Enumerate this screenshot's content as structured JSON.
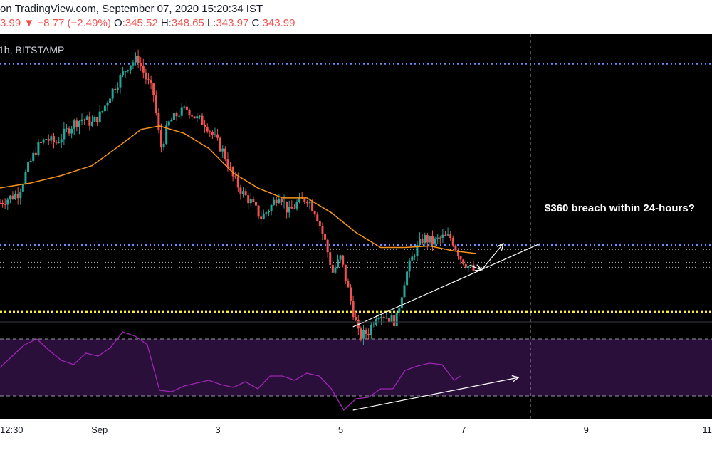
{
  "header": {
    "source_line": "on TradingView.com, September 07, 2020 15:20:34 IST",
    "last_fragment": "3.99",
    "change_arrow": "▼",
    "change": "−8.77 (−2.49%)",
    "o_label": "O:",
    "o_value": "345.52",
    "h_label": "H:",
    "h_value": "348.65",
    "l_label": "L:",
    "l_value": "343.97",
    "c_label": "C:",
    "c_value": "343.99",
    "symbol_fragment": "1h, BITSTAMP"
  },
  "colors": {
    "up": "#26a69a",
    "down": "#ef5350",
    "ma": "#f7931a",
    "resistance": "#6b8dff",
    "support": "#ffeb3b",
    "rsi": "#9c27b0",
    "rsi_band": "#2a0f3a",
    "annotation": "#ffffff",
    "background": "#000000"
  },
  "chart_data": {
    "type": "candlestick",
    "annotation": "$360 breach within 24-hours?",
    "x_ticks": [
      "12:30",
      "Sep",
      "3",
      "5",
      "7",
      "9",
      "11"
    ],
    "price_series": {
      "close_path": [
        [
          0.0,
          364
        ],
        [
          0.15,
          365
        ],
        [
          0.3,
          366
        ],
        [
          0.45,
          371
        ],
        [
          0.6,
          375
        ],
        [
          0.75,
          377
        ],
        [
          0.9,
          376
        ],
        [
          1.05,
          378
        ],
        [
          1.2,
          380
        ],
        [
          1.35,
          381
        ],
        [
          1.5,
          380
        ],
        [
          1.65,
          382
        ],
        [
          1.8,
          386
        ],
        [
          1.95,
          389
        ],
        [
          2.1,
          392
        ],
        [
          2.25,
          393
        ],
        [
          2.38,
          389
        ],
        [
          2.5,
          386
        ],
        [
          2.62,
          375
        ],
        [
          2.75,
          380
        ],
        [
          2.9,
          382
        ],
        [
          3.05,
          383
        ],
        [
          3.2,
          381
        ],
        [
          3.35,
          380
        ],
        [
          3.5,
          377
        ],
        [
          3.65,
          374
        ],
        [
          3.8,
          369
        ],
        [
          3.95,
          366
        ],
        [
          4.1,
          364
        ],
        [
          4.25,
          361
        ],
        [
          4.4,
          363
        ],
        [
          4.55,
          366
        ],
        [
          4.7,
          362
        ],
        [
          4.85,
          364
        ],
        [
          5.0,
          365
        ],
        [
          5.15,
          362
        ],
        [
          5.3,
          356
        ],
        [
          5.42,
          350
        ],
        [
          5.55,
          353
        ],
        [
          5.68,
          346
        ],
        [
          5.85,
          337
        ],
        [
          6.0,
          338
        ],
        [
          6.15,
          342
        ],
        [
          6.3,
          341
        ],
        [
          6.45,
          340
        ],
        [
          6.6,
          349
        ],
        [
          6.75,
          354
        ],
        [
          6.9,
          357
        ],
        [
          7.05,
          356
        ],
        [
          7.2,
          357
        ],
        [
          7.35,
          357
        ],
        [
          7.5,
          353
        ],
        [
          7.65,
          351
        ],
        [
          7.75,
          350
        ]
      ],
      "ma_path": [
        [
          0.0,
          367
        ],
        [
          0.5,
          368
        ],
        [
          1.0,
          369.5
        ],
        [
          1.5,
          371.5
        ],
        [
          2.0,
          376
        ],
        [
          2.3,
          378.8
        ],
        [
          2.6,
          379.5
        ],
        [
          3.0,
          378
        ],
        [
          3.4,
          375
        ],
        [
          3.8,
          370
        ],
        [
          4.2,
          367
        ],
        [
          4.6,
          365
        ],
        [
          5.0,
          365
        ],
        [
          5.4,
          362
        ],
        [
          5.8,
          358
        ],
        [
          6.2,
          355
        ],
        [
          6.6,
          355
        ],
        [
          7.0,
          355.3
        ],
        [
          7.4,
          354.3
        ],
        [
          7.75,
          353.8
        ]
      ]
    },
    "levels": [
      {
        "name": "resistance-top",
        "value": 392,
        "style": "blue-dotted"
      },
      {
        "name": "resistance-360",
        "value": 355.5,
        "style": "blue-dotted"
      },
      {
        "name": "level-upper",
        "value": 354.6,
        "style": "white-dotted"
      },
      {
        "name": "level-mid",
        "value": 352.0,
        "style": "white-dotted"
      },
      {
        "name": "level-lower",
        "value": 351.0,
        "style": "white-dotted"
      },
      {
        "name": "support",
        "value": 342.0,
        "style": "yellow-dotted"
      }
    ],
    "rsi": {
      "overbought": 70,
      "oversold": 30,
      "values": [
        [
          0.0,
          50
        ],
        [
          0.2,
          58
        ],
        [
          0.4,
          66
        ],
        [
          0.6,
          70
        ],
        [
          0.8,
          62
        ],
        [
          1.0,
          55
        ],
        [
          1.2,
          52
        ],
        [
          1.4,
          60
        ],
        [
          1.6,
          58
        ],
        [
          1.8,
          64
        ],
        [
          2.0,
          75
        ],
        [
          2.2,
          72
        ],
        [
          2.4,
          66
        ],
        [
          2.6,
          34
        ],
        [
          2.8,
          33
        ],
        [
          3.0,
          37
        ],
        [
          3.2,
          39
        ],
        [
          3.4,
          41
        ],
        [
          3.6,
          38
        ],
        [
          3.8,
          36
        ],
        [
          4.0,
          40
        ],
        [
          4.2,
          35
        ],
        [
          4.4,
          44
        ],
        [
          4.6,
          44
        ],
        [
          4.8,
          41
        ],
        [
          5.0,
          46
        ],
        [
          5.2,
          44
        ],
        [
          5.4,
          35
        ],
        [
          5.6,
          20
        ],
        [
          5.8,
          28
        ],
        [
          6.0,
          29
        ],
        [
          6.2,
          35
        ],
        [
          6.4,
          35
        ],
        [
          6.6,
          48
        ],
        [
          6.8,
          51
        ],
        [
          7.0,
          53
        ],
        [
          7.2,
          52
        ],
        [
          7.4,
          41
        ],
        [
          7.5,
          44
        ]
      ]
    },
    "drawings": {
      "price_trendline": [
        [
          5.75,
          339.0
        ],
        [
          8.8,
          355.8
        ]
      ],
      "breakout_arrow": [
        [
          7.65,
          351.4
        ],
        [
          7.85,
          350.5
        ],
        [
          8.2,
          355.8
        ]
      ],
      "rsi_trendline": [
        [
          5.75,
          20
        ],
        [
          8.45,
          43
        ]
      ]
    },
    "x_range": [
      0,
      11.6
    ],
    "price_range": [
      340,
      398
    ],
    "rsi_range": [
      14,
      82
    ]
  }
}
